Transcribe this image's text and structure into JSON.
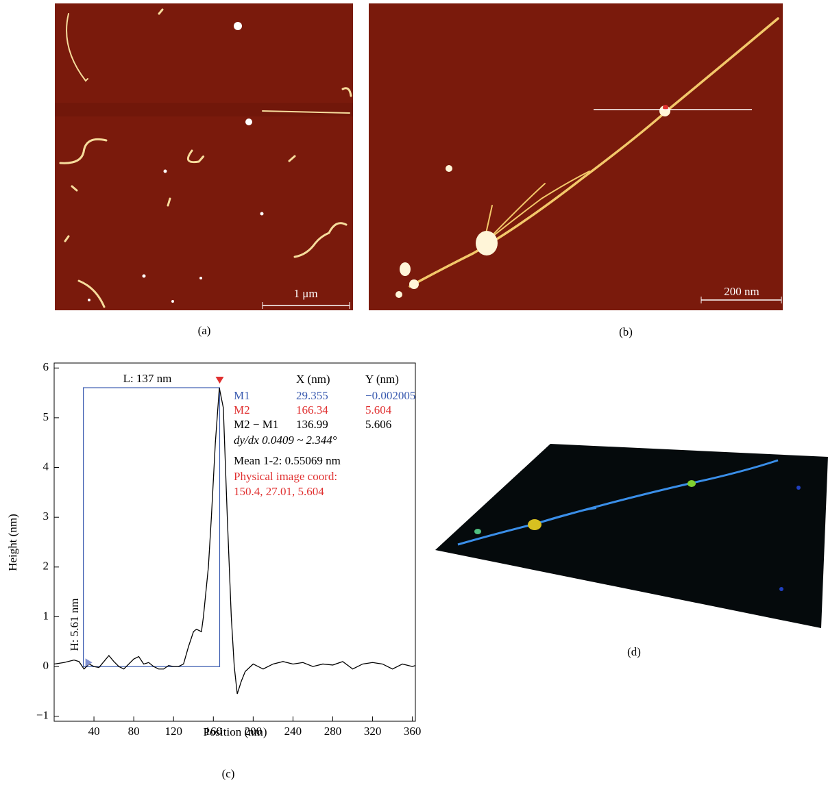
{
  "panels": {
    "a": {
      "label": "(a)",
      "scale_bar": "1 μm"
    },
    "b": {
      "label": "(b)",
      "scale_bar": "200 nm"
    },
    "d": {
      "label": "(d)"
    }
  },
  "chart_data": {
    "type": "line",
    "label": "(c)",
    "x_label": "Position (nm)",
    "y_label": "Height (nm)",
    "xlim": [
      0,
      363
    ],
    "ylim": [
      -1.1,
      6.1
    ],
    "xticks": [
      40,
      80,
      120,
      160,
      200,
      240,
      280,
      320,
      360
    ],
    "yticks": [
      {
        "value": -1,
        "label": "−1"
      },
      0,
      1,
      2,
      3,
      4,
      5,
      6
    ],
    "series": [
      {
        "color": "#000000",
        "x": [
          0,
          10,
          20,
          25,
          30,
          35,
          40,
          45,
          50,
          55,
          60,
          65,
          70,
          75,
          80,
          85,
          90,
          95,
          100,
          105,
          110,
          115,
          120,
          125,
          130,
          135,
          140,
          143,
          148,
          150,
          155,
          158,
          162,
          166,
          170,
          174,
          178,
          181,
          184,
          188,
          192,
          200,
          210,
          220,
          230,
          240,
          250,
          260,
          270,
          280,
          290,
          300,
          310,
          320,
          330,
          340,
          350,
          360,
          363
        ],
        "values": [
          0.05,
          0.08,
          0.13,
          0.1,
          -0.05,
          0.05,
          0,
          -0.02,
          0.1,
          0.22,
          0.1,
          0,
          -0.05,
          0.05,
          0.15,
          0.2,
          0.05,
          0.08,
          0,
          -0.05,
          -0.05,
          0.02,
          0,
          0,
          0.05,
          0.4,
          0.7,
          0.75,
          0.7,
          1.0,
          2.0,
          3.0,
          4.5,
          5.6,
          5.2,
          3.0,
          1.0,
          0,
          -0.55,
          -0.3,
          -0.1,
          0.05,
          -0.05,
          0.05,
          0.1,
          0.05,
          0.08,
          0,
          0.05,
          0.03,
          0.1,
          -0.05,
          0.05,
          0.08,
          0.05,
          -0.05,
          0.05,
          0,
          0.02
        ]
      }
    ],
    "annotations": {
      "length_label": "L: 137 nm",
      "height_label": "H: 5.61 nm",
      "table_header": [
        "X (nm)",
        "Y (nm)"
      ],
      "markers": [
        {
          "name": "M1",
          "x": 29.355,
          "y": -0.002005,
          "y_label": "−0.002005",
          "color": "#3a5bb0"
        },
        {
          "name": "M2",
          "x": 166.34,
          "y": 5.604,
          "color": "#e03030"
        }
      ],
      "difference": {
        "name": "M2 − M1",
        "x": 136.99,
        "y": 5.606
      },
      "slope": "dy/dx 0.0409 ~ 2.344°",
      "mean": "Mean 1-2: 0.55069 nm",
      "coord_title": "Physical image coord:",
      "coord": "150.4, 27.01, 5.604"
    }
  }
}
